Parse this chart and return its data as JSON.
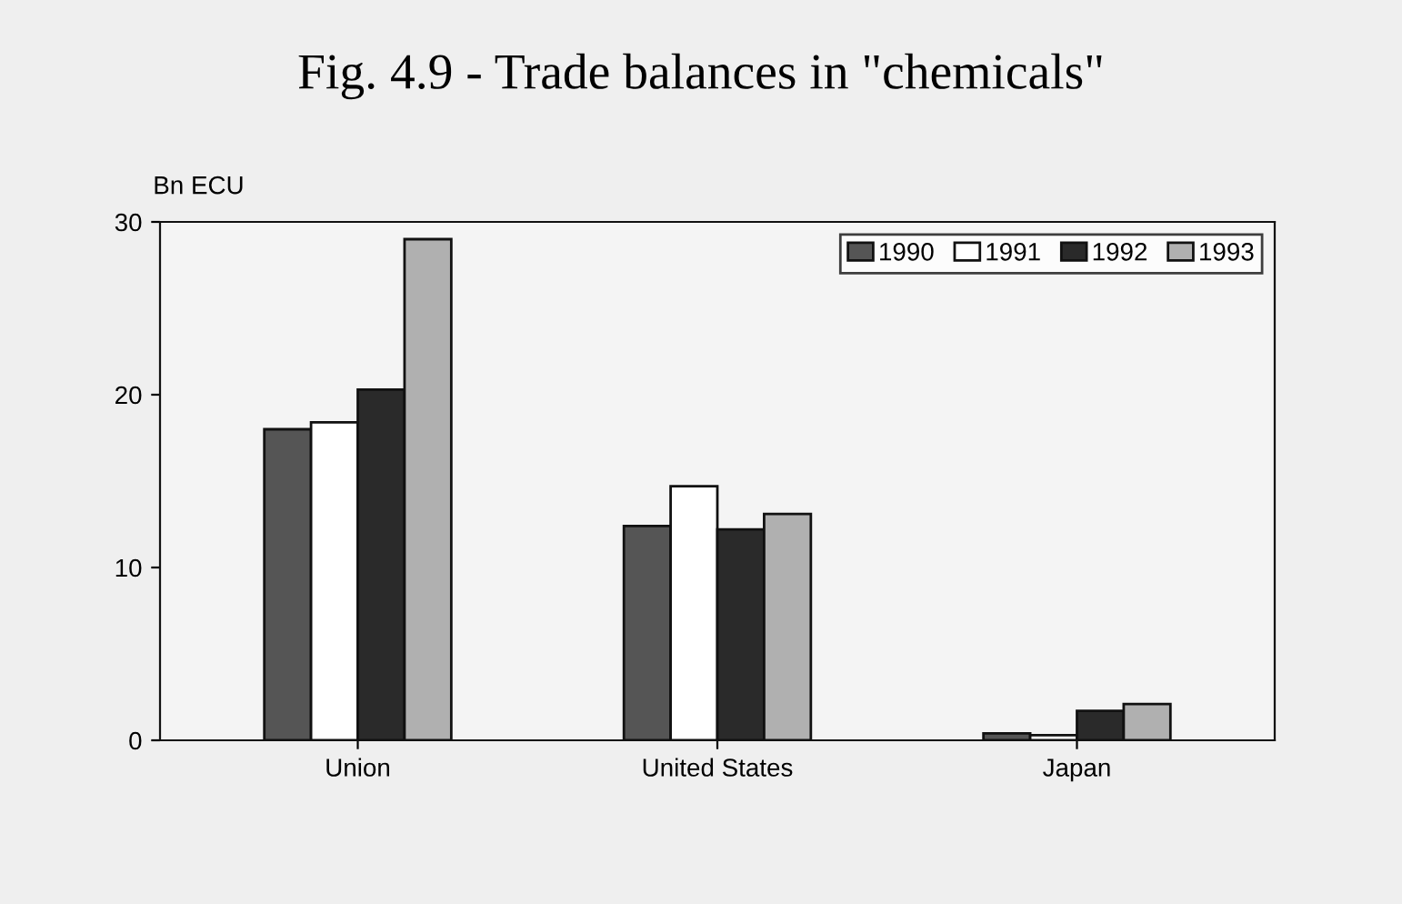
{
  "chart_data": {
    "type": "bar",
    "title": "Fig. 4.9 - Trade balances in \"chemicals\"",
    "ylabel": "Bn ECU",
    "categories": [
      "Union",
      "United States",
      "Japan"
    ],
    "series": [
      {
        "name": "1990",
        "color": "#555555",
        "values": [
          18.0,
          12.4,
          0.4
        ]
      },
      {
        "name": "1991",
        "color": "#ffffff",
        "values": [
          18.4,
          14.7,
          0.3
        ]
      },
      {
        "name": "1992",
        "color": "#2a2a2a",
        "values": [
          20.3,
          12.2,
          1.7
        ]
      },
      {
        "name": "1993",
        "color": "#b0b0b0",
        "values": [
          29.0,
          13.1,
          2.1
        ]
      }
    ],
    "ylim": [
      0,
      30
    ],
    "yticks": [
      0,
      10,
      20,
      30
    ],
    "grid": false,
    "legend": "top right"
  }
}
